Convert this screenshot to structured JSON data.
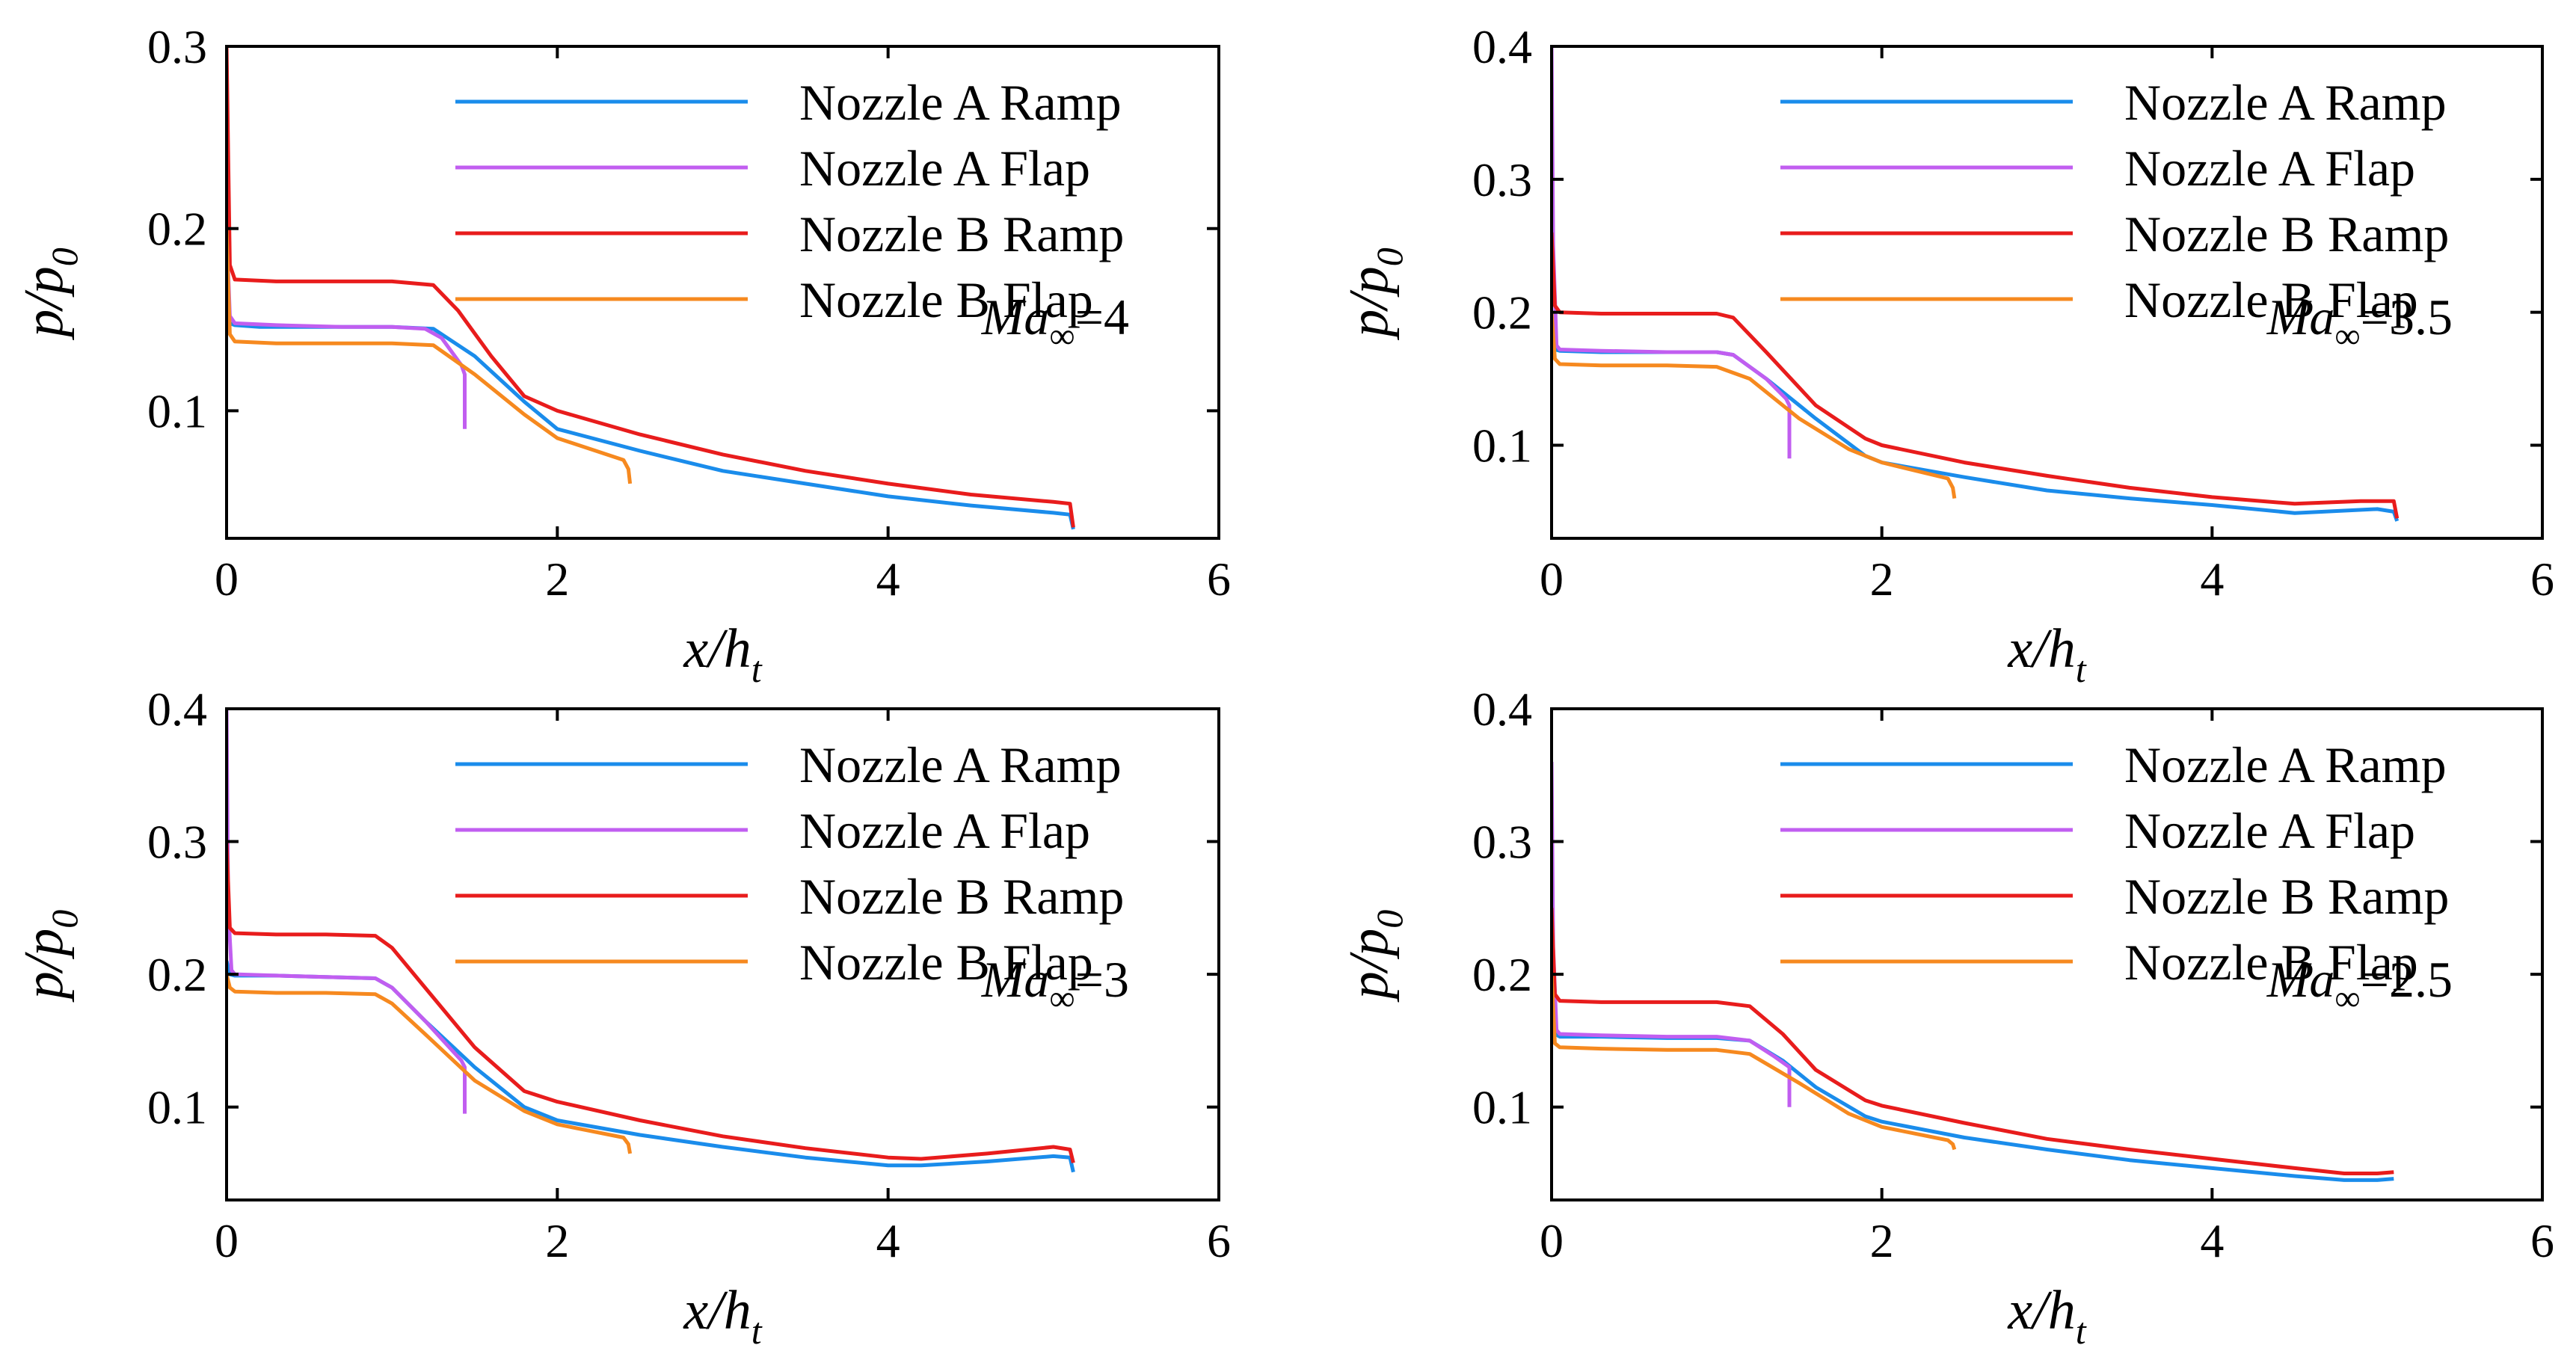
{
  "chart_data": [
    {
      "type": "line",
      "title": "",
      "xlabel": "x/h",
      "xlabel_sub": "t",
      "ylabel": "p/p",
      "ylabel_sub": "0",
      "xlim": [
        0,
        6
      ],
      "ylim": [
        0.03,
        0.3
      ],
      "xticks": [
        0,
        2,
        4,
        6
      ],
      "xtick_labels": [
        "0",
        "2",
        "4",
        "6"
      ],
      "yticks": [
        0.1,
        0.2,
        0.3
      ],
      "ytick_labels": [
        "0.1",
        "0.2",
        "0.3"
      ],
      "annotation": {
        "var": "Ma",
        "sub": "∞",
        "value": "=4"
      },
      "series": [
        {
          "name": "Nozzle A Ramp",
          "color": "#1a8ceb",
          "x": [
            0,
            0.02,
            0.05,
            0.2,
            0.6,
            1.0,
            1.25,
            1.5,
            1.8,
            2.0,
            2.5,
            3.0,
            3.5,
            4.0,
            4.5,
            5.0,
            5.1,
            5.12
          ],
          "y": [
            0.15,
            0.148,
            0.147,
            0.146,
            0.146,
            0.146,
            0.145,
            0.13,
            0.105,
            0.09,
            0.078,
            0.067,
            0.06,
            0.053,
            0.048,
            0.044,
            0.043,
            0.035
          ]
        },
        {
          "name": "Nozzle A Flap",
          "color": "#c15ef0",
          "x": [
            0,
            0.02,
            0.05,
            0.3,
            0.7,
            1.0,
            1.2,
            1.3,
            1.42,
            1.44,
            1.44
          ],
          "y": [
            0.2,
            0.152,
            0.148,
            0.147,
            0.146,
            0.146,
            0.145,
            0.14,
            0.125,
            0.12,
            0.09
          ]
        },
        {
          "name": "Nozzle B Ramp",
          "color": "#e81c1c",
          "x": [
            0,
            0.02,
            0.05,
            0.3,
            0.7,
            1.0,
            1.25,
            1.4,
            1.6,
            1.8,
            2.0,
            2.5,
            3.0,
            3.5,
            4.0,
            4.5,
            5.0,
            5.1,
            5.12
          ],
          "y": [
            0.3,
            0.18,
            0.172,
            0.171,
            0.171,
            0.171,
            0.169,
            0.155,
            0.13,
            0.108,
            0.1,
            0.087,
            0.076,
            0.067,
            0.06,
            0.054,
            0.05,
            0.049,
            0.036
          ]
        },
        {
          "name": "Nozzle B Flap",
          "color": "#f6891f",
          "x": [
            0,
            0.02,
            0.05,
            0.3,
            0.7,
            1.0,
            1.25,
            1.5,
            1.8,
            2.0,
            2.2,
            2.4,
            2.43,
            2.44
          ],
          "y": [
            0.2,
            0.142,
            0.138,
            0.137,
            0.137,
            0.137,
            0.136,
            0.12,
            0.098,
            0.085,
            0.079,
            0.073,
            0.068,
            0.06
          ]
        }
      ]
    },
    {
      "type": "line",
      "title": "",
      "xlabel": "x/h",
      "xlabel_sub": "t",
      "ylabel": "p/p",
      "ylabel_sub": "0",
      "xlim": [
        0,
        6
      ],
      "ylim": [
        0.03,
        0.4
      ],
      "xticks": [
        0,
        2,
        4,
        6
      ],
      "xtick_labels": [
        "0",
        "2",
        "4",
        "6"
      ],
      "yticks": [
        0.1,
        0.2,
        0.3,
        0.4
      ],
      "ytick_labels": [
        "0.1",
        "0.2",
        "0.3",
        "0.4"
      ],
      "annotation": {
        "var": "Ma",
        "sub": "∞",
        "value": "=3.5"
      },
      "series": [
        {
          "name": "Nozzle A Ramp",
          "color": "#1a8ceb",
          "x": [
            0,
            0.02,
            0.05,
            0.3,
            0.7,
            1.0,
            1.1,
            1.3,
            1.6,
            1.9,
            2.0,
            2.5,
            3.0,
            3.5,
            4.0,
            4.5,
            5.0,
            5.1,
            5.12
          ],
          "y": [
            0.18,
            0.172,
            0.171,
            0.17,
            0.17,
            0.17,
            0.168,
            0.15,
            0.12,
            0.092,
            0.087,
            0.076,
            0.066,
            0.06,
            0.055,
            0.049,
            0.052,
            0.05,
            0.043
          ]
        },
        {
          "name": "Nozzle A Flap",
          "color": "#c15ef0",
          "x": [
            0,
            0.01,
            0.03,
            0.05,
            0.3,
            0.7,
            1.0,
            1.1,
            1.3,
            1.42,
            1.44,
            1.44
          ],
          "y": [
            0.4,
            0.25,
            0.175,
            0.172,
            0.171,
            0.17,
            0.17,
            0.168,
            0.15,
            0.135,
            0.13,
            0.09
          ]
        },
        {
          "name": "Nozzle B Ramp",
          "color": "#e81c1c",
          "x": [
            0,
            0.02,
            0.05,
            0.3,
            0.7,
            1.0,
            1.1,
            1.3,
            1.6,
            1.9,
            2.0,
            2.5,
            3.0,
            3.5,
            4.0,
            4.5,
            4.9,
            5.1,
            5.12
          ],
          "y": [
            0.26,
            0.205,
            0.2,
            0.199,
            0.199,
            0.199,
            0.196,
            0.17,
            0.13,
            0.105,
            0.1,
            0.087,
            0.077,
            0.068,
            0.061,
            0.056,
            0.058,
            0.058,
            0.045
          ]
        },
        {
          "name": "Nozzle B Flap",
          "color": "#f6891f",
          "x": [
            0,
            0.02,
            0.05,
            0.3,
            0.7,
            1.0,
            1.2,
            1.5,
            1.8,
            2.0,
            2.2,
            2.4,
            2.43,
            2.44
          ],
          "y": [
            0.2,
            0.165,
            0.161,
            0.16,
            0.16,
            0.159,
            0.15,
            0.12,
            0.097,
            0.087,
            0.081,
            0.075,
            0.068,
            0.06
          ]
        }
      ]
    },
    {
      "type": "line",
      "title": "",
      "xlabel": "x/h",
      "xlabel_sub": "t",
      "ylabel": "p/p",
      "ylabel_sub": "0",
      "xlim": [
        0,
        6
      ],
      "ylim": [
        0.03,
        0.4
      ],
      "xticks": [
        0,
        2,
        4,
        6
      ],
      "xtick_labels": [
        "0",
        "2",
        "4",
        "6"
      ],
      "yticks": [
        0.1,
        0.2,
        0.3,
        0.4
      ],
      "ytick_labels": [
        "0.1",
        "0.2",
        "0.3",
        "0.4"
      ],
      "annotation": {
        "var": "Ma",
        "sub": "∞",
        "value": "=3"
      },
      "series": [
        {
          "name": "Nozzle A Ramp",
          "color": "#1a8ceb",
          "x": [
            0,
            0.02,
            0.05,
            0.3,
            0.6,
            0.9,
            1.0,
            1.2,
            1.5,
            1.8,
            2.0,
            2.5,
            3.0,
            3.5,
            4.0,
            4.2,
            4.6,
            5.0,
            5.1,
            5.12
          ],
          "y": [
            0.21,
            0.2,
            0.199,
            0.199,
            0.198,
            0.197,
            0.19,
            0.165,
            0.13,
            0.1,
            0.09,
            0.079,
            0.07,
            0.062,
            0.056,
            0.056,
            0.059,
            0.063,
            0.062,
            0.051
          ]
        },
        {
          "name": "Nozzle A Flap",
          "color": "#c15ef0",
          "x": [
            0,
            0.01,
            0.03,
            0.05,
            0.3,
            0.6,
            0.9,
            1.0,
            1.2,
            1.42,
            1.44,
            1.44
          ],
          "y": [
            0.4,
            0.25,
            0.203,
            0.2,
            0.199,
            0.198,
            0.197,
            0.19,
            0.165,
            0.135,
            0.13,
            0.095
          ]
        },
        {
          "name": "Nozzle B Ramp",
          "color": "#e81c1c",
          "x": [
            0,
            0.02,
            0.05,
            0.3,
            0.6,
            0.9,
            1.0,
            1.2,
            1.5,
            1.8,
            2.0,
            2.5,
            3.0,
            3.5,
            4.0,
            4.2,
            4.6,
            5.0,
            5.1,
            5.12
          ],
          "y": [
            0.3,
            0.235,
            0.231,
            0.23,
            0.23,
            0.229,
            0.22,
            0.19,
            0.145,
            0.112,
            0.104,
            0.09,
            0.078,
            0.069,
            0.062,
            0.061,
            0.065,
            0.07,
            0.068,
            0.058
          ]
        },
        {
          "name": "Nozzle B Flap",
          "color": "#f6891f",
          "x": [
            0,
            0.02,
            0.05,
            0.3,
            0.6,
            0.9,
            1.0,
            1.2,
            1.5,
            1.8,
            2.0,
            2.2,
            2.4,
            2.43,
            2.44
          ],
          "y": [
            0.2,
            0.19,
            0.187,
            0.186,
            0.186,
            0.185,
            0.178,
            0.155,
            0.12,
            0.097,
            0.087,
            0.082,
            0.077,
            0.072,
            0.065
          ]
        }
      ]
    },
    {
      "type": "line",
      "title": "",
      "xlabel": "x/h",
      "xlabel_sub": "t",
      "ylabel": "p/p",
      "ylabel_sub": "0",
      "xlim": [
        0,
        6
      ],
      "ylim": [
        0.03,
        0.4
      ],
      "xticks": [
        0,
        2,
        4,
        6
      ],
      "xtick_labels": [
        "0",
        "2",
        "4",
        "6"
      ],
      "yticks": [
        0.1,
        0.2,
        0.3,
        0.4
      ],
      "ytick_labels": [
        "0.1",
        "0.2",
        "0.3",
        "0.4"
      ],
      "annotation": {
        "var": "Ma",
        "sub": "∞",
        "value": "=2.5"
      },
      "series": [
        {
          "name": "Nozzle A Ramp",
          "color": "#1a8ceb",
          "x": [
            0,
            0.02,
            0.05,
            0.3,
            0.7,
            1.0,
            1.2,
            1.4,
            1.6,
            1.9,
            2.0,
            2.5,
            3.0,
            3.5,
            4.0,
            4.5,
            4.8,
            5.0,
            5.1
          ],
          "y": [
            0.16,
            0.155,
            0.153,
            0.153,
            0.152,
            0.152,
            0.15,
            0.135,
            0.115,
            0.093,
            0.089,
            0.077,
            0.068,
            0.06,
            0.054,
            0.048,
            0.045,
            0.045,
            0.046
          ]
        },
        {
          "name": "Nozzle A Flap",
          "color": "#c15ef0",
          "x": [
            0,
            0.01,
            0.03,
            0.05,
            0.3,
            0.7,
            1.0,
            1.2,
            1.35,
            1.44,
            1.44
          ],
          "y": [
            0.36,
            0.22,
            0.158,
            0.155,
            0.154,
            0.153,
            0.153,
            0.15,
            0.138,
            0.13,
            0.1
          ]
        },
        {
          "name": "Nozzle B Ramp",
          "color": "#e81c1c",
          "x": [
            0,
            0.02,
            0.05,
            0.3,
            0.7,
            1.0,
            1.2,
            1.4,
            1.6,
            1.9,
            2.0,
            2.5,
            3.0,
            3.5,
            4.0,
            4.5,
            4.8,
            5.0,
            5.1
          ],
          "y": [
            0.25,
            0.185,
            0.18,
            0.179,
            0.179,
            0.179,
            0.176,
            0.155,
            0.128,
            0.105,
            0.101,
            0.088,
            0.076,
            0.068,
            0.061,
            0.054,
            0.05,
            0.05,
            0.051
          ]
        },
        {
          "name": "Nozzle B Flap",
          "color": "#f6891f",
          "x": [
            0,
            0.02,
            0.05,
            0.3,
            0.7,
            1.0,
            1.2,
            1.5,
            1.8,
            2.0,
            2.2,
            2.4,
            2.43,
            2.44
          ],
          "y": [
            0.2,
            0.148,
            0.145,
            0.144,
            0.143,
            0.143,
            0.14,
            0.118,
            0.095,
            0.085,
            0.08,
            0.075,
            0.072,
            0.068
          ]
        }
      ]
    }
  ]
}
